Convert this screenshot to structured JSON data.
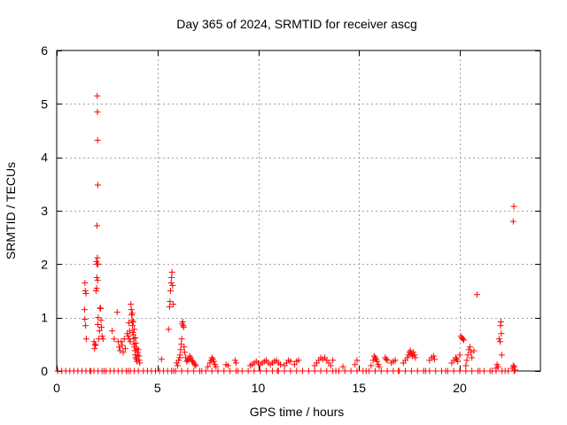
{
  "chart_data": {
    "type": "scatter",
    "title": "Day 365 of 2024, SRMTID for receiver ascg",
    "xlabel": "GPS time / hours",
    "ylabel": "SRMTID / TECUs",
    "xlim": [
      0,
      24
    ],
    "ylim": [
      0,
      6
    ],
    "xticks": [
      0,
      5,
      10,
      15,
      20
    ],
    "yticks": [
      0,
      1,
      2,
      3,
      4,
      5,
      6
    ],
    "grid": true,
    "marker": "+",
    "color": "#ff0000",
    "series": [
      {
        "name": "SRMTID",
        "points": [
          [
            0.05,
            0.0
          ],
          [
            0.25,
            0.0
          ],
          [
            0.45,
            0.0
          ],
          [
            0.65,
            0.0
          ],
          [
            0.85,
            0.0
          ],
          [
            1.05,
            0.0
          ],
          [
            1.25,
            0.0
          ],
          [
            1.45,
            0.0
          ],
          [
            1.65,
            0.0
          ],
          [
            1.85,
            0.0
          ],
          [
            2.05,
            0.0
          ],
          [
            2.25,
            0.0
          ],
          [
            2.45,
            0.0
          ],
          [
            2.65,
            0.0
          ],
          [
            2.85,
            0.0
          ],
          [
            3.05,
            0.0
          ],
          [
            3.25,
            0.0
          ],
          [
            3.45,
            0.0
          ],
          [
            3.65,
            0.0
          ],
          [
            3.85,
            0.0
          ],
          [
            4.05,
            0.0
          ],
          [
            4.3,
            0.0
          ],
          [
            4.5,
            0.0
          ],
          [
            4.7,
            0.0
          ],
          [
            4.9,
            0.0
          ],
          [
            5.1,
            0.0
          ],
          [
            5.3,
            0.0
          ],
          [
            5.5,
            0.0
          ],
          [
            5.7,
            0.0
          ],
          [
            5.9,
            0.0
          ],
          [
            6.2,
            0.0
          ],
          [
            6.5,
            0.0
          ],
          [
            6.8,
            0.0
          ],
          [
            7.1,
            0.0
          ],
          [
            7.4,
            0.0
          ],
          [
            7.7,
            0.0
          ],
          [
            8.0,
            0.0
          ],
          [
            8.3,
            0.0
          ],
          [
            8.6,
            0.0
          ],
          [
            8.9,
            0.0
          ],
          [
            9.2,
            0.0
          ],
          [
            9.5,
            0.0
          ],
          [
            9.8,
            0.0
          ],
          [
            10.1,
            0.0
          ],
          [
            10.4,
            0.0
          ],
          [
            10.7,
            0.0
          ],
          [
            11.0,
            0.0
          ],
          [
            11.3,
            0.0
          ],
          [
            11.6,
            0.0
          ],
          [
            11.9,
            0.0
          ],
          [
            12.2,
            0.0
          ],
          [
            12.5,
            0.0
          ],
          [
            12.8,
            0.0
          ],
          [
            13.1,
            0.0
          ],
          [
            13.4,
            0.0
          ],
          [
            13.7,
            0.0
          ],
          [
            14.0,
            0.0
          ],
          [
            14.3,
            0.0
          ],
          [
            14.6,
            0.0
          ],
          [
            14.9,
            0.0
          ],
          [
            15.2,
            0.0
          ],
          [
            15.5,
            0.0
          ],
          [
            15.8,
            0.0
          ],
          [
            16.1,
            0.0
          ],
          [
            16.4,
            0.0
          ],
          [
            16.7,
            0.0
          ],
          [
            17.0,
            0.0
          ],
          [
            17.3,
            0.0
          ],
          [
            17.6,
            0.0
          ],
          [
            17.9,
            0.0
          ],
          [
            18.2,
            0.0
          ],
          [
            18.5,
            0.0
          ],
          [
            18.8,
            0.0
          ],
          [
            19.1,
            0.0
          ],
          [
            19.4,
            0.0
          ],
          [
            19.7,
            0.0
          ],
          [
            20.0,
            0.0
          ],
          [
            20.3,
            0.0
          ],
          [
            20.6,
            0.0
          ],
          [
            20.9,
            0.0
          ],
          [
            21.2,
            0.0
          ],
          [
            21.5,
            0.0
          ],
          [
            21.8,
            0.0
          ],
          [
            22.1,
            0.0
          ],
          [
            22.4,
            0.0
          ],
          [
            22.7,
            0.0
          ],
          [
            1.4,
            1.65
          ],
          [
            1.42,
            1.5
          ],
          [
            1.45,
            1.45
          ],
          [
            1.38,
            1.15
          ],
          [
            1.4,
            0.97
          ],
          [
            1.43,
            0.85
          ],
          [
            1.47,
            0.6
          ],
          [
            1.85,
            0.55
          ],
          [
            1.9,
            0.5
          ],
          [
            1.88,
            0.42
          ],
          [
            1.93,
            0.48
          ],
          [
            1.95,
            1.5
          ],
          [
            1.98,
            1.55
          ],
          [
            2.0,
            2.0
          ],
          [
            1.97,
            2.05
          ],
          [
            2.02,
            2.12
          ],
          [
            2.05,
            2.0
          ],
          [
            1.99,
            1.75
          ],
          [
            2.03,
            1.7
          ],
          [
            2.06,
            1.0
          ],
          [
            2.04,
            0.87
          ],
          [
            2.08,
            0.6
          ],
          [
            2.01,
            5.15
          ],
          [
            2.02,
            4.85
          ],
          [
            2.03,
            4.32
          ],
          [
            2.04,
            3.48
          ],
          [
            2.0,
            2.72
          ],
          [
            2.12,
            0.75
          ],
          [
            2.15,
            1.18
          ],
          [
            2.18,
            1.17
          ],
          [
            2.2,
            0.95
          ],
          [
            2.22,
            0.82
          ],
          [
            2.25,
            0.65
          ],
          [
            2.3,
            0.6
          ],
          [
            2.75,
            0.75
          ],
          [
            2.85,
            0.6
          ],
          [
            3.0,
            1.1
          ],
          [
            3.05,
            0.55
          ],
          [
            3.1,
            0.45
          ],
          [
            3.15,
            0.38
          ],
          [
            3.2,
            0.55
          ],
          [
            3.25,
            0.48
          ],
          [
            3.3,
            0.35
          ],
          [
            3.35,
            0.6
          ],
          [
            3.4,
            0.42
          ],
          [
            3.5,
            0.7
          ],
          [
            3.55,
            0.65
          ],
          [
            3.58,
            0.9
          ],
          [
            3.6,
            0.6
          ],
          [
            3.62,
            0.75
          ],
          [
            3.65,
            0.55
          ],
          [
            3.68,
            1.25
          ],
          [
            3.7,
            1.15
          ],
          [
            3.72,
            1.05
          ],
          [
            3.74,
            0.95
          ],
          [
            3.76,
            0.85
          ],
          [
            3.78,
            0.72
          ],
          [
            3.8,
            0.68
          ],
          [
            3.82,
            0.6
          ],
          [
            3.84,
            0.5
          ],
          [
            3.86,
            0.45
          ],
          [
            3.88,
            0.38
          ],
          [
            3.9,
            0.3
          ],
          [
            3.92,
            0.25
          ],
          [
            3.95,
            0.22
          ],
          [
            3.98,
            0.18
          ],
          [
            4.0,
            0.3
          ],
          [
            4.02,
            0.35
          ],
          [
            4.05,
            0.4
          ],
          [
            4.08,
            0.28
          ],
          [
            4.1,
            0.2
          ],
          [
            4.12,
            0.15
          ],
          [
            3.75,
            1.08
          ],
          [
            3.8,
            0.92
          ],
          [
            3.85,
            0.78
          ],
          [
            3.9,
            0.62
          ],
          [
            3.93,
            0.52
          ],
          [
            3.96,
            0.42
          ],
          [
            5.2,
            0.22
          ],
          [
            5.55,
            0.78
          ],
          [
            5.6,
            1.2
          ],
          [
            5.62,
            1.3
          ],
          [
            5.65,
            1.5
          ],
          [
            5.68,
            1.65
          ],
          [
            5.7,
            1.75
          ],
          [
            5.72,
            1.85
          ],
          [
            5.75,
            1.6
          ],
          [
            5.78,
            1.25
          ],
          [
            5.95,
            0.15
          ],
          [
            6.0,
            0.1
          ],
          [
            6.05,
            0.2
          ],
          [
            6.1,
            0.25
          ],
          [
            6.12,
            0.3
          ],
          [
            6.15,
            0.4
          ],
          [
            6.18,
            0.5
          ],
          [
            6.2,
            0.6
          ],
          [
            6.22,
            0.88
          ],
          [
            6.25,
            0.92
          ],
          [
            6.28,
            0.85
          ],
          [
            6.3,
            0.82
          ],
          [
            6.32,
            0.45
          ],
          [
            6.35,
            0.35
          ],
          [
            6.4,
            0.25
          ],
          [
            6.45,
            0.18
          ],
          [
            6.5,
            0.2
          ],
          [
            6.55,
            0.22
          ],
          [
            6.6,
            0.28
          ],
          [
            6.65,
            0.25
          ],
          [
            6.7,
            0.2
          ],
          [
            6.75,
            0.18
          ],
          [
            6.8,
            0.15
          ],
          [
            6.85,
            0.12
          ],
          [
            6.9,
            0.1
          ],
          [
            7.5,
            0.08
          ],
          [
            7.6,
            0.15
          ],
          [
            7.65,
            0.2
          ],
          [
            7.7,
            0.25
          ],
          [
            7.75,
            0.22
          ],
          [
            7.8,
            0.18
          ],
          [
            7.85,
            0.12
          ],
          [
            7.9,
            0.08
          ],
          [
            8.4,
            0.12
          ],
          [
            8.5,
            0.1
          ],
          [
            8.85,
            0.2
          ],
          [
            8.9,
            0.15
          ],
          [
            9.6,
            0.1
          ],
          [
            9.7,
            0.12
          ],
          [
            9.8,
            0.15
          ],
          [
            9.9,
            0.18
          ],
          [
            10.0,
            0.15
          ],
          [
            10.1,
            0.12
          ],
          [
            10.2,
            0.15
          ],
          [
            10.3,
            0.18
          ],
          [
            10.4,
            0.2
          ],
          [
            10.5,
            0.15
          ],
          [
            10.6,
            0.12
          ],
          [
            10.7,
            0.15
          ],
          [
            10.8,
            0.18
          ],
          [
            10.9,
            0.2
          ],
          [
            11.0,
            0.15
          ],
          [
            11.1,
            0.12
          ],
          [
            11.3,
            0.1
          ],
          [
            11.4,
            0.15
          ],
          [
            11.5,
            0.2
          ],
          [
            11.6,
            0.18
          ],
          [
            11.8,
            0.12
          ],
          [
            11.9,
            0.18
          ],
          [
            12.0,
            0.2
          ],
          [
            12.8,
            0.1
          ],
          [
            12.9,
            0.15
          ],
          [
            13.0,
            0.2
          ],
          [
            13.1,
            0.25
          ],
          [
            13.2,
            0.22
          ],
          [
            13.3,
            0.25
          ],
          [
            13.4,
            0.2
          ],
          [
            13.5,
            0.15
          ],
          [
            13.6,
            0.1
          ],
          [
            13.7,
            0.2
          ],
          [
            14.2,
            0.08
          ],
          [
            14.8,
            0.12
          ],
          [
            14.9,
            0.2
          ],
          [
            15.6,
            0.1
          ],
          [
            15.7,
            0.2
          ],
          [
            15.75,
            0.28
          ],
          [
            15.8,
            0.25
          ],
          [
            15.85,
            0.22
          ],
          [
            15.9,
            0.18
          ],
          [
            15.95,
            0.12
          ],
          [
            16.0,
            0.08
          ],
          [
            16.3,
            0.25
          ],
          [
            16.35,
            0.22
          ],
          [
            16.4,
            0.2
          ],
          [
            16.6,
            0.15
          ],
          [
            16.7,
            0.18
          ],
          [
            16.8,
            0.2
          ],
          [
            17.2,
            0.15
          ],
          [
            17.3,
            0.2
          ],
          [
            17.4,
            0.25
          ],
          [
            17.45,
            0.3
          ],
          [
            17.5,
            0.35
          ],
          [
            17.55,
            0.38
          ],
          [
            17.6,
            0.32
          ],
          [
            17.65,
            0.28
          ],
          [
            17.7,
            0.35
          ],
          [
            17.75,
            0.3
          ],
          [
            17.8,
            0.25
          ],
          [
            18.5,
            0.2
          ],
          [
            18.6,
            0.25
          ],
          [
            18.7,
            0.28
          ],
          [
            18.75,
            0.22
          ],
          [
            19.6,
            0.15
          ],
          [
            19.7,
            0.2
          ],
          [
            19.8,
            0.25
          ],
          [
            19.85,
            0.22
          ],
          [
            19.9,
            0.18
          ],
          [
            20.0,
            0.3
          ],
          [
            20.05,
            0.65
          ],
          [
            20.1,
            0.62
          ],
          [
            20.15,
            0.6
          ],
          [
            20.2,
            0.58
          ],
          [
            20.3,
            0.1
          ],
          [
            20.35,
            0.2
          ],
          [
            20.4,
            0.3
          ],
          [
            20.45,
            0.4
          ],
          [
            20.5,
            0.45
          ],
          [
            20.55,
            0.35
          ],
          [
            20.6,
            0.25
          ],
          [
            20.7,
            0.38
          ],
          [
            20.85,
            1.43
          ],
          [
            21.8,
            0.05
          ],
          [
            21.85,
            0.12
          ],
          [
            21.9,
            0.08
          ],
          [
            21.95,
            0.6
          ],
          [
            22.0,
            0.55
          ],
          [
            22.02,
            0.85
          ],
          [
            22.04,
            0.92
          ],
          [
            22.06,
            0.7
          ],
          [
            22.08,
            0.3
          ],
          [
            22.6,
            0.05
          ],
          [
            22.65,
            0.1
          ],
          [
            22.7,
            0.08
          ],
          [
            22.75,
            0.02
          ],
          [
            22.68,
            3.08
          ],
          [
            22.65,
            2.8
          ],
          [
            1.7,
            0.0
          ],
          [
            2.35,
            0.0
          ],
          [
            3.55,
            0.0
          ],
          [
            5.8,
            0.0
          ],
          [
            7.2,
            0.0
          ],
          [
            9.0,
            0.0
          ],
          [
            10.95,
            0.0
          ],
          [
            13.85,
            0.0
          ],
          [
            15.35,
            0.0
          ],
          [
            16.95,
            0.0
          ],
          [
            18.3,
            0.0
          ],
          [
            19.3,
            0.0
          ],
          [
            21.0,
            0.0
          ],
          [
            21.6,
            0.0
          ],
          [
            22.25,
            0.0
          ]
        ]
      }
    ]
  }
}
